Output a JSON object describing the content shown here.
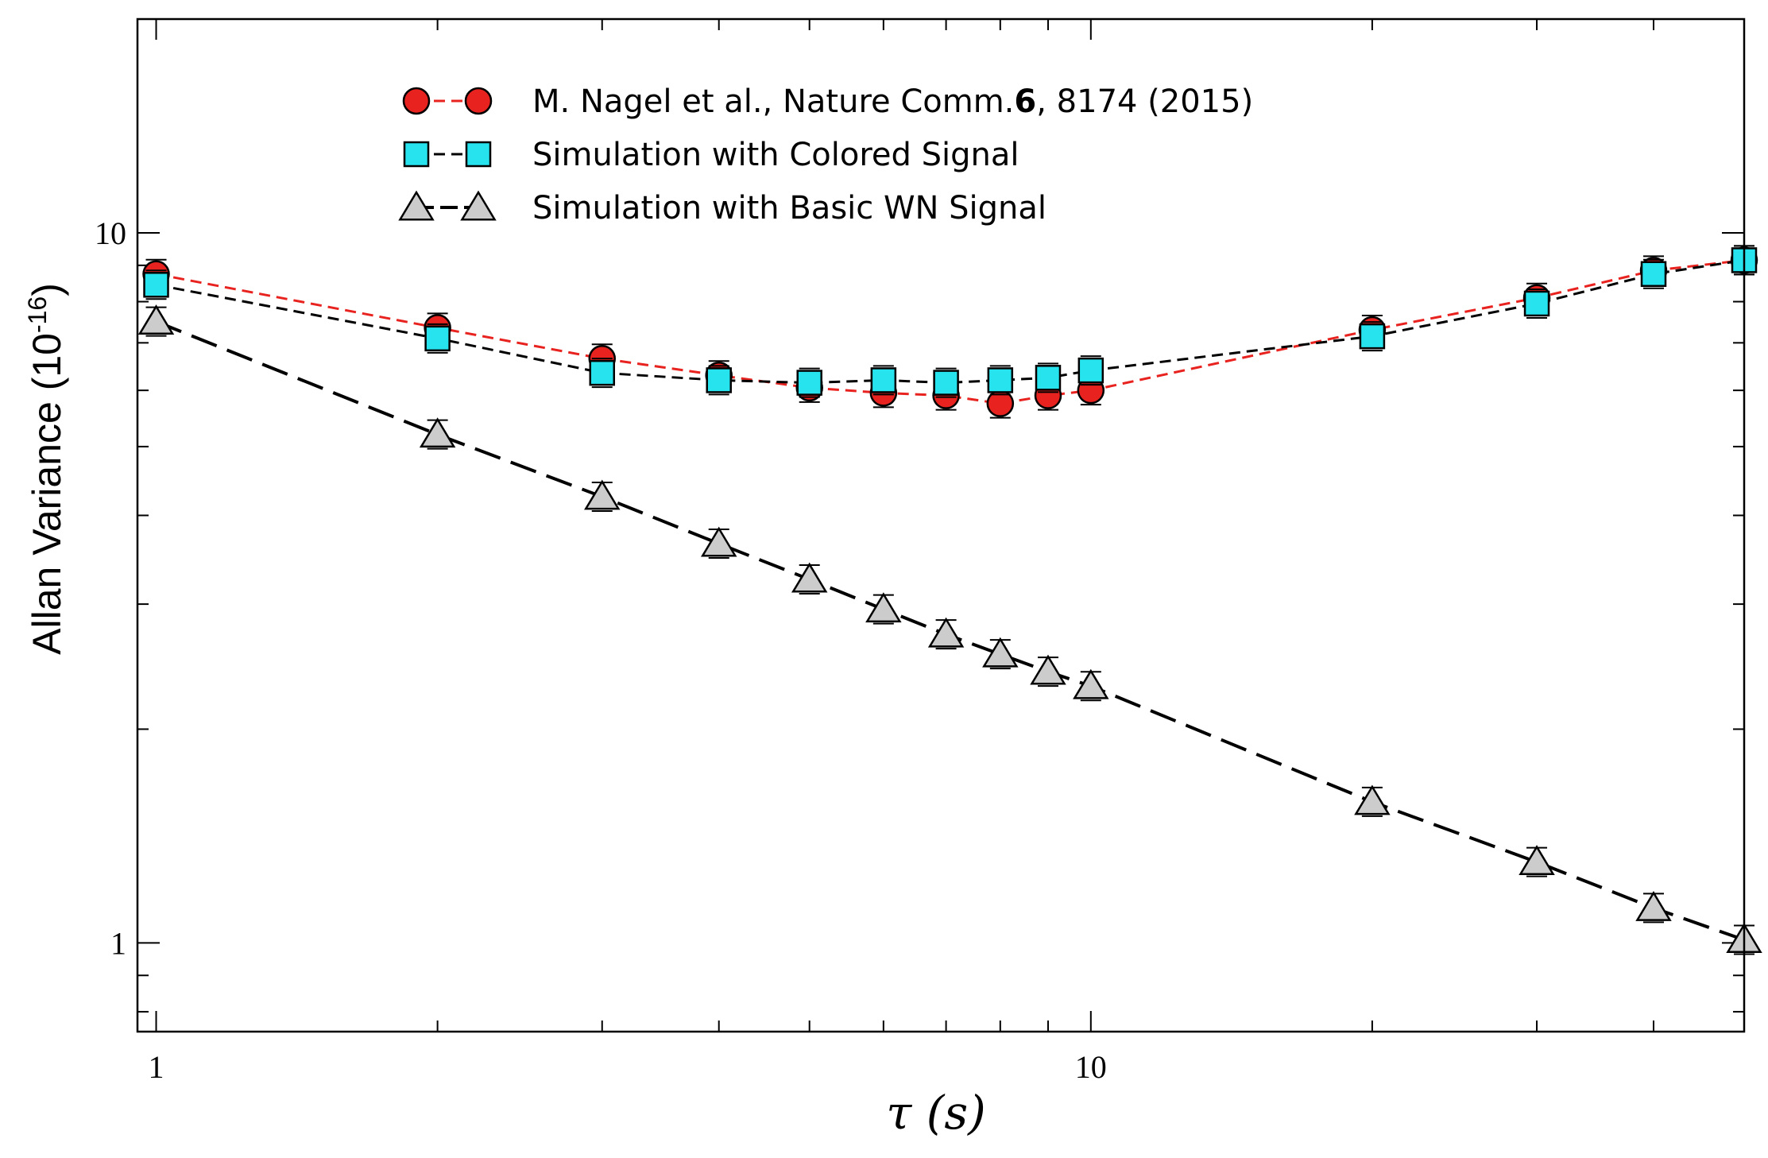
{
  "chart_data": {
    "type": "line",
    "x_scale": "log",
    "y_scale": "log",
    "xlim": [
      0.955,
      50
    ],
    "ylim": [
      0.75,
      20
    ],
    "xlabel": "τ (s)",
    "ylabel": {
      "base": "Allan Variance (10",
      "exponent": "-16",
      "close": ")"
    },
    "x_ticks": [
      {
        "value": 1,
        "label": "1"
      },
      {
        "value": 10,
        "label": "10"
      }
    ],
    "y_ticks": [
      {
        "value": 1,
        "label": "1"
      },
      {
        "value": 10,
        "label": "10"
      }
    ],
    "x": [
      1,
      2,
      3,
      4,
      5,
      6,
      7,
      8,
      9,
      10,
      20,
      30,
      40,
      50
    ],
    "series": [
      {
        "name": "M. Nagel et al., Nature Comm.",
        "name_bold": "6",
        "name_rest": ", 8174 (2015)",
        "marker": "circle",
        "color": "#e8231f",
        "line_color": "#e8231f",
        "values": [
          8.75,
          7.35,
          6.65,
          6.3,
          6.05,
          5.95,
          5.9,
          5.75,
          5.9,
          6.0,
          7.3,
          8.1,
          8.85,
          9.15
        ]
      },
      {
        "name": "Simulation with Colored Signal",
        "marker": "square",
        "color": "#27e3ee",
        "line_color": "#000000",
        "values": [
          8.45,
          7.1,
          6.35,
          6.2,
          6.15,
          6.2,
          6.15,
          6.2,
          6.25,
          6.4,
          7.15,
          7.95,
          8.75,
          9.15
        ]
      },
      {
        "name": "Simulation with Basic WN Signal",
        "marker": "triangle",
        "color": "#cccccc",
        "line_color": "#000000",
        "values": [
          7.5,
          5.2,
          4.25,
          3.65,
          3.25,
          2.95,
          2.72,
          2.55,
          2.41,
          2.3,
          1.58,
          1.3,
          1.12,
          1.01
        ]
      }
    ],
    "legend_position": "top-left"
  }
}
